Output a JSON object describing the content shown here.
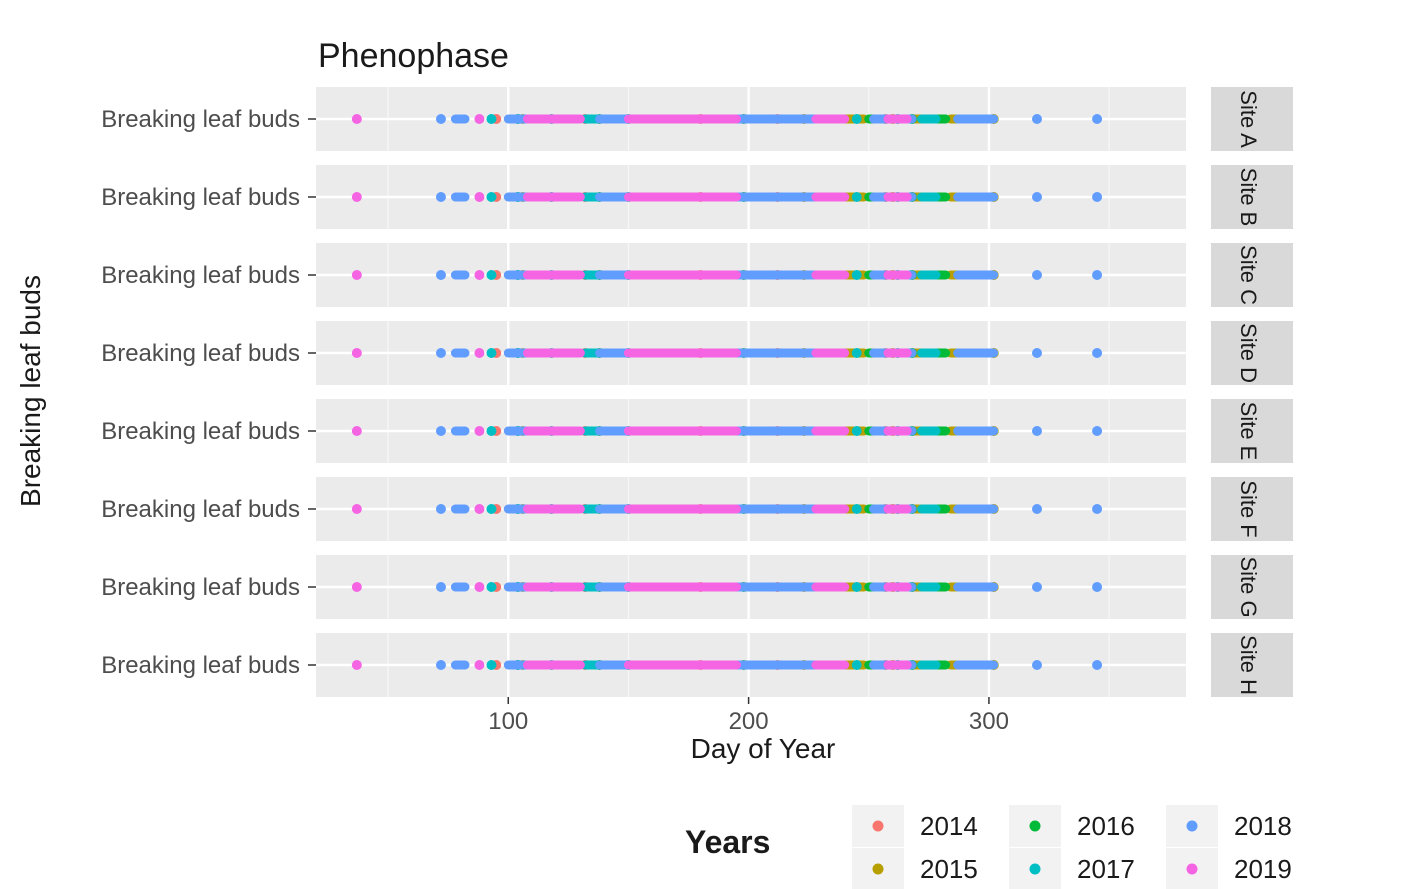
{
  "chart_data": {
    "type": "scatter",
    "title": "Phenophase",
    "xlabel": "Day of Year",
    "ylabel": "Breaking leaf buds",
    "xlim": [
      20,
      382
    ],
    "xticks": [
      100,
      200,
      300
    ],
    "x_minor_gridlines": [
      50,
      150,
      250,
      350
    ],
    "grid": true,
    "category_label": "Breaking leaf buds",
    "facets": [
      "Site A",
      "Site B",
      "Site C",
      "Site D",
      "Site E",
      "Site F",
      "Site G",
      "Site H"
    ],
    "legend": {
      "title": "Years",
      "position": "bottom",
      "entries": [
        {
          "year": "2014",
          "color": "#F8766D"
        },
        {
          "year": "2015",
          "color": "#B79F00"
        },
        {
          "year": "2016",
          "color": "#00BA38"
        },
        {
          "year": "2017",
          "color": "#00BFC4"
        },
        {
          "year": "2018",
          "color": "#619CFF"
        },
        {
          "year": "2019",
          "color": "#F564E3"
        }
      ]
    },
    "series": [
      {
        "name": "2014",
        "color": "#F8766D",
        "segments": [
          [
            242,
            246
          ],
          [
            268,
            270
          ]
        ],
        "points": [
          95,
          132,
          180,
          212,
          257
        ]
      },
      {
        "name": "2015",
        "color": "#B79F00",
        "segments": [
          [
            238,
            248
          ],
          [
            270,
            276
          ],
          [
            284,
            296
          ]
        ],
        "points": [
          106,
          223,
          260,
          302
        ]
      },
      {
        "name": "2016",
        "color": "#00BA38",
        "segments": [
          [
            250,
            258
          ],
          [
            276,
            282
          ],
          [
            290,
            300
          ]
        ],
        "points": [
          104,
          138,
          198,
          268
        ]
      },
      {
        "name": "2017",
        "color": "#00BFC4",
        "segments": [
          [
            132,
            142
          ],
          [
            272,
            278
          ],
          [
            294,
            299
          ]
        ],
        "points": [
          93,
          104,
          118,
          150,
          245,
          262
        ]
      },
      {
        "name": "2018",
        "color": "#619CFF",
        "segments": [
          [
            78,
            82
          ],
          [
            100,
            110
          ],
          [
            138,
            150
          ],
          [
            195,
            230
          ],
          [
            252,
            268
          ],
          [
            287,
            302
          ]
        ],
        "points": [
          72,
          320,
          345
        ]
      },
      {
        "name": "2019",
        "color": "#F564E3",
        "segments": [
          [
            108,
            130
          ],
          [
            150,
            195
          ],
          [
            228,
            240
          ],
          [
            258,
            266
          ]
        ],
        "points": [
          37,
          88
        ]
      }
    ]
  }
}
